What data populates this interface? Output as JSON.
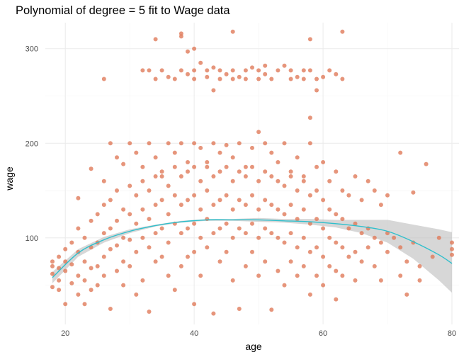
{
  "chart_data": {
    "type": "scatter",
    "title": "Polynomial of degree = 5 fit to Wage data",
    "xlabel": "age",
    "ylabel": "wage",
    "xlim": [
      16.9,
      81.1
    ],
    "ylim": [
      8.5,
      327.5
    ],
    "x_ticks": [
      20,
      40,
      60,
      80
    ],
    "y_ticks": [
      100,
      200,
      300
    ],
    "x_tick_labels": [
      "20",
      "40",
      "60",
      "80"
    ],
    "y_tick_labels": [
      "100",
      "200",
      "300"
    ],
    "grid": true,
    "legend": "none",
    "colors": {
      "points": "#e07b5a",
      "fit": "#2ebfcc",
      "band": "#bdbdbd"
    },
    "series": [
      {
        "kind": "points",
        "note_values": "sampled representative points read from the scatter",
        "points": [
          [
            26,
            268
          ],
          [
            32,
            277
          ],
          [
            33,
            277
          ],
          [
            34,
            310
          ],
          [
            34,
            268
          ],
          [
            35,
            277
          ],
          [
            36,
            270
          ],
          [
            37,
            268
          ],
          [
            38,
            277
          ],
          [
            38,
            313
          ],
          [
            38,
            316
          ],
          [
            39,
            297
          ],
          [
            39,
            273
          ],
          [
            40,
            300
          ],
          [
            40,
            277
          ],
          [
            40,
            268
          ],
          [
            41,
            285
          ],
          [
            42,
            277
          ],
          [
            42,
            270
          ],
          [
            43,
            256
          ],
          [
            43,
            280
          ],
          [
            44,
            268
          ],
          [
            44,
            277
          ],
          [
            45,
            273
          ],
          [
            46,
            318
          ],
          [
            46,
            277
          ],
          [
            46,
            268
          ],
          [
            47,
            270
          ],
          [
            48,
            277
          ],
          [
            48,
            268
          ],
          [
            49,
            280
          ],
          [
            50,
            277
          ],
          [
            50,
            268
          ],
          [
            51,
            282
          ],
          [
            51,
            273
          ],
          [
            52,
            268
          ],
          [
            53,
            277
          ],
          [
            54,
            282
          ],
          [
            55,
            277
          ],
          [
            55,
            268
          ],
          [
            56,
            270
          ],
          [
            57,
            277
          ],
          [
            57,
            268
          ],
          [
            58,
            310
          ],
          [
            58,
            277
          ],
          [
            59,
            256
          ],
          [
            59,
            268
          ],
          [
            60,
            270
          ],
          [
            61,
            277
          ],
          [
            62,
            273
          ],
          [
            63,
            318
          ],
          [
            63,
            268
          ],
          [
            22,
            142
          ],
          [
            24,
            173
          ],
          [
            26,
            160
          ],
          [
            27,
            200
          ],
          [
            28,
            185
          ],
          [
            29,
            178
          ],
          [
            30,
            200
          ],
          [
            31,
            190
          ],
          [
            32,
            175
          ],
          [
            33,
            200
          ],
          [
            34,
            185
          ],
          [
            35,
            165
          ],
          [
            36,
            200
          ],
          [
            37,
            190
          ],
          [
            38,
            200
          ],
          [
            39,
            180
          ],
          [
            40,
            200
          ],
          [
            41,
            195
          ],
          [
            42,
            175
          ],
          [
            43,
            200
          ],
          [
            44,
            190
          ],
          [
            45,
            198
          ],
          [
            46,
            185
          ],
          [
            47,
            200
          ],
          [
            48,
            175
          ],
          [
            49,
            195
          ],
          [
            50,
            212
          ],
          [
            51,
            200
          ],
          [
            52,
            190
          ],
          [
            53,
            180
          ],
          [
            54,
            200
          ],
          [
            55,
            170
          ],
          [
            56,
            185
          ],
          [
            57,
            165
          ],
          [
            58,
            227
          ],
          [
            58,
            200
          ],
          [
            59,
            175
          ],
          [
            60,
            180
          ],
          [
            61,
            160
          ],
          [
            62,
            170
          ],
          [
            63,
            150
          ],
          [
            64,
            145
          ],
          [
            65,
            165
          ],
          [
            66,
            140
          ],
          [
            67,
            160
          ],
          [
            68,
            150
          ],
          [
            69,
            135
          ],
          [
            70,
            145
          ],
          [
            72,
            190
          ],
          [
            74,
            148
          ],
          [
            76,
            178
          ],
          [
            18,
            75
          ],
          [
            18,
            62
          ],
          [
            18,
            48
          ],
          [
            18,
            70
          ],
          [
            19,
            55
          ],
          [
            19,
            45
          ],
          [
            19,
            80
          ],
          [
            19,
            68
          ],
          [
            20,
            30
          ],
          [
            20,
            88
          ],
          [
            20,
            65
          ],
          [
            20,
            75
          ],
          [
            21,
            52
          ],
          [
            21,
            95
          ],
          [
            21,
            72
          ],
          [
            22,
            110
          ],
          [
            22,
            60
          ],
          [
            22,
            85
          ],
          [
            22,
            40
          ],
          [
            23,
            100
          ],
          [
            23,
            75
          ],
          [
            23,
            55
          ],
          [
            23,
            30
          ],
          [
            24,
            118
          ],
          [
            24,
            90
          ],
          [
            24,
            68
          ],
          [
            24,
            45
          ],
          [
            25,
            125
          ],
          [
            25,
            95
          ],
          [
            25,
            70
          ],
          [
            25,
            50
          ],
          [
            26,
            135
          ],
          [
            26,
            105
          ],
          [
            26,
            80
          ],
          [
            26,
            60
          ],
          [
            27,
            140
          ],
          [
            27,
            110
          ],
          [
            27,
            88
          ],
          [
            27,
            25
          ],
          [
            28,
            150
          ],
          [
            28,
            118
          ],
          [
            28,
            92
          ],
          [
            28,
            65
          ],
          [
            29,
            130
          ],
          [
            29,
            100
          ],
          [
            29,
            75
          ],
          [
            29,
            50
          ],
          [
            30,
            155
          ],
          [
            30,
            125
          ],
          [
            30,
            98
          ],
          [
            30,
            70
          ],
          [
            31,
            145
          ],
          [
            31,
            115
          ],
          [
            31,
            85
          ],
          [
            31,
            40
          ],
          [
            32,
            160
          ],
          [
            32,
            130
          ],
          [
            32,
            100
          ],
          [
            32,
            55
          ],
          [
            33,
            150
          ],
          [
            33,
            120
          ],
          [
            33,
            90
          ],
          [
            33,
            22
          ],
          [
            34,
            165
          ],
          [
            34,
            135
          ],
          [
            34,
            105
          ],
          [
            34,
            75
          ],
          [
            35,
            170
          ],
          [
            35,
            140
          ],
          [
            35,
            110
          ],
          [
            35,
            80
          ],
          [
            36,
            155
          ],
          [
            36,
            125
          ],
          [
            36,
            95
          ],
          [
            36,
            60
          ],
          [
            37,
            175
          ],
          [
            37,
            145
          ],
          [
            37,
            115
          ],
          [
            37,
            45
          ],
          [
            38,
            165
          ],
          [
            38,
            135
          ],
          [
            38,
            105
          ],
          [
            38,
            70
          ],
          [
            39,
            170
          ],
          [
            39,
            140
          ],
          [
            39,
            110
          ],
          [
            39,
            80
          ],
          [
            40,
            175
          ],
          [
            40,
            145
          ],
          [
            40,
            115
          ],
          [
            40,
            85
          ],
          [
            40,
            30
          ],
          [
            41,
            160
          ],
          [
            41,
            130
          ],
          [
            41,
            100
          ],
          [
            41,
            60
          ],
          [
            42,
            180
          ],
          [
            42,
            150
          ],
          [
            42,
            120
          ],
          [
            42,
            90
          ],
          [
            43,
            165
          ],
          [
            43,
            135
          ],
          [
            43,
            105
          ],
          [
            43,
            20
          ],
          [
            44,
            170
          ],
          [
            44,
            140
          ],
          [
            44,
            110
          ],
          [
            44,
            75
          ],
          [
            45,
            175
          ],
          [
            45,
            145
          ],
          [
            45,
            115
          ],
          [
            45,
            85
          ],
          [
            46,
            160
          ],
          [
            46,
            130
          ],
          [
            46,
            100
          ],
          [
            46,
            55
          ],
          [
            47,
            170
          ],
          [
            47,
            140
          ],
          [
            47,
            110
          ],
          [
            47,
            25
          ],
          [
            48,
            165
          ],
          [
            48,
            135
          ],
          [
            48,
            105
          ],
          [
            48,
            70
          ],
          [
            49,
            175
          ],
          [
            49,
            145
          ],
          [
            49,
            115
          ],
          [
            49,
            85
          ],
          [
            50,
            160
          ],
          [
            50,
            130
          ],
          [
            50,
            100
          ],
          [
            50,
            60
          ],
          [
            51,
            170
          ],
          [
            51,
            140
          ],
          [
            51,
            110
          ],
          [
            51,
            75
          ],
          [
            52,
            165
          ],
          [
            52,
            135
          ],
          [
            52,
            105
          ],
          [
            52,
            24
          ],
          [
            53,
            160
          ],
          [
            53,
            130
          ],
          [
            53,
            100
          ],
          [
            53,
            65
          ],
          [
            54,
            155
          ],
          [
            54,
            125
          ],
          [
            54,
            95
          ],
          [
            54,
            50
          ],
          [
            55,
            165
          ],
          [
            55,
            135
          ],
          [
            55,
            105
          ],
          [
            55,
            75
          ],
          [
            56,
            150
          ],
          [
            56,
            120
          ],
          [
            56,
            90
          ],
          [
            56,
            60
          ],
          [
            57,
            160
          ],
          [
            57,
            130
          ],
          [
            57,
            100
          ],
          [
            57,
            70
          ],
          [
            58,
            145
          ],
          [
            58,
            115
          ],
          [
            58,
            85
          ],
          [
            58,
            40
          ],
          [
            59,
            150
          ],
          [
            59,
            120
          ],
          [
            59,
            90
          ],
          [
            59,
            60
          ],
          [
            60,
            140
          ],
          [
            60,
            110
          ],
          [
            60,
            80
          ],
          [
            60,
            50
          ],
          [
            61,
            130
          ],
          [
            61,
            100
          ],
          [
            61,
            70
          ],
          [
            62,
            125
          ],
          [
            62,
            95
          ],
          [
            62,
            65
          ],
          [
            62,
            35
          ],
          [
            63,
            120
          ],
          [
            63,
            90
          ],
          [
            63,
            60
          ],
          [
            64,
            110
          ],
          [
            64,
            80
          ],
          [
            65,
            115
          ],
          [
            65,
            85
          ],
          [
            65,
            55
          ],
          [
            66,
            105
          ],
          [
            66,
            75
          ],
          [
            67,
            110
          ],
          [
            67,
            90
          ],
          [
            68,
            100
          ],
          [
            68,
            70
          ],
          [
            69,
            95
          ],
          [
            69,
            55
          ],
          [
            70,
            105
          ],
          [
            70,
            85
          ],
          [
            71,
            100
          ],
          [
            72,
            90
          ],
          [
            72,
            60
          ],
          [
            73,
            75
          ],
          [
            73,
            40
          ],
          [
            74,
            95
          ],
          [
            75,
            70
          ],
          [
            75,
            55
          ],
          [
            77,
            80
          ],
          [
            78,
            100
          ],
          [
            80,
            95
          ],
          [
            80,
            88
          ],
          [
            80,
            82
          ]
        ]
      },
      {
        "kind": "fit",
        "x": [
          18,
          22,
          26,
          30,
          34,
          38,
          42,
          46,
          50,
          54,
          58,
          62,
          66,
          70,
          74,
          78,
          80
        ],
        "y": [
          58,
          84,
          98,
          107,
          113,
          117,
          119,
          119,
          119,
          118,
          117,
          115,
          112,
          107,
          96,
          82,
          73
        ],
        "lower": [
          52,
          80,
          95,
          105,
          112,
          116,
          118,
          118,
          117,
          116,
          114,
          111,
          105,
          95,
          78,
          55,
          42
        ],
        "upper": [
          64,
          88,
          101,
          109,
          114,
          118,
          120,
          120,
          121,
          120,
          120,
          119,
          119,
          119,
          114,
          109,
          106
        ]
      }
    ]
  }
}
